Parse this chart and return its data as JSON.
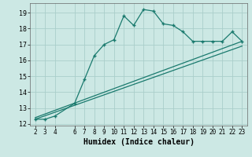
{
  "title": "",
  "xlabel": "Humidex (Indice chaleur)",
  "bg_color": "#cce8e4",
  "grid_color": "#aaceca",
  "line_color": "#1a7a6e",
  "x_data": [
    2,
    3,
    4,
    6,
    7,
    8,
    9,
    10,
    11,
    12,
    13,
    14,
    15,
    16,
    17,
    18,
    19,
    20,
    21,
    22,
    23
  ],
  "y_main": [
    12.3,
    12.3,
    12.5,
    13.3,
    14.8,
    16.3,
    17.0,
    17.3,
    18.8,
    18.2,
    19.2,
    19.1,
    18.3,
    18.2,
    17.8,
    17.2,
    17.2,
    17.2,
    17.2,
    17.8,
    17.2
  ],
  "line1_x": [
    2,
    23
  ],
  "line1_y": [
    12.3,
    16.9
  ],
  "line2_x": [
    2,
    23
  ],
  "line2_y": [
    12.4,
    17.2
  ],
  "ylim": [
    11.9,
    19.6
  ],
  "xlim": [
    1.5,
    23.5
  ],
  "yticks": [
    12,
    13,
    14,
    15,
    16,
    17,
    18,
    19
  ],
  "xticks": [
    2,
    3,
    4,
    6,
    7,
    8,
    9,
    10,
    11,
    12,
    13,
    14,
    15,
    16,
    17,
    18,
    19,
    20,
    21,
    22,
    23
  ]
}
